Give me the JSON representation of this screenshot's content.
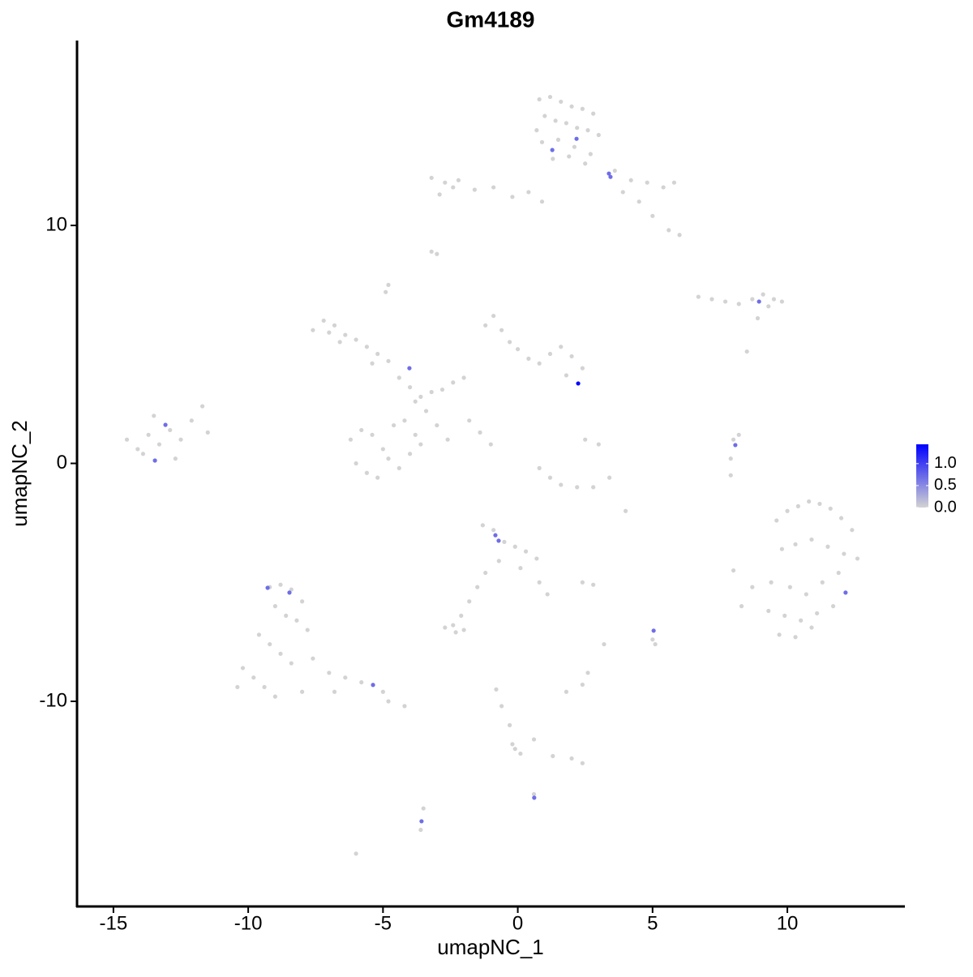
{
  "chart_data": {
    "type": "scatter",
    "title": "Gm4189",
    "x_label": "umapNC_1",
    "y_label": "umapNC_2",
    "xlim": [
      -16.35,
      14.33
    ],
    "ylim": [
      -18.62,
      17.77
    ],
    "xticks": [
      -15,
      -10,
      -5,
      0,
      5,
      10
    ],
    "yticks": [
      -10,
      0,
      10
    ],
    "low_color": "#d3d3d3",
    "high_color": "#0000ff",
    "color_lim": [
      0,
      1.44
    ],
    "color_ticks": [
      {
        "value": 0,
        "label": "0.0"
      },
      {
        "value": 0.5,
        "label": "0.5"
      },
      {
        "value": 1,
        "label": "1.0"
      }
    ],
    "x": [
      0.8,
      1.2,
      1.6,
      2.0,
      2.4,
      2.8,
      1.0,
      1.4,
      1.8,
      2.2,
      2.6,
      3.0,
      0.9,
      1.5,
      2.1,
      2.7,
      1.3,
      1.9,
      2.5,
      0.7,
      3.6,
      4.2,
      4.8,
      5.4,
      5.8,
      4.5,
      5.0,
      5.6,
      6.0,
      3.9,
      -3.2,
      -2.7,
      -2.2,
      -1.6,
      -0.9,
      -0.2,
      0.4,
      0.9,
      -2.9,
      -2.4,
      -3.2,
      -3.0,
      -4.8,
      -4.9,
      8.5,
      4.0,
      6.7,
      7.2,
      7.7,
      8.2,
      8.7,
      9.1,
      9.5,
      9.8,
      9.3,
      8.9,
      -7.6,
      -7.2,
      -6.8,
      -6.4,
      -6.0,
      -5.6,
      -5.2,
      -4.8,
      -7.0,
      -6.6,
      -5.4,
      -4.4,
      -4.0,
      -3.6,
      -3.2,
      -2.8,
      -2.4,
      -2.0,
      -3.4,
      -3.8,
      -3.0,
      -2.6,
      -6.2,
      -5.8,
      -5.4,
      -5.0,
      -4.6,
      -4.2,
      -3.8,
      -6.0,
      -5.6,
      -5.2,
      -4.8,
      -4.4,
      -4.0,
      -3.6,
      -1.2,
      -0.9,
      -0.6,
      -0.3,
      0.0,
      0.4,
      0.8,
      1.2,
      1.6,
      2.0,
      2.4,
      1.8,
      -1.8,
      -1.4,
      -1.0,
      0.8,
      1.2,
      1.6,
      2.2,
      2.8,
      3.4,
      3.0,
      2.5,
      -14.5,
      -14.1,
      -13.7,
      -13.3,
      -12.9,
      -12.5,
      -12.1,
      -11.7,
      -13.9,
      -13.5,
      -12.7,
      -11.5,
      8.0,
      7.9,
      7.9,
      8.2,
      9.6,
      10.0,
      10.4,
      10.8,
      11.2,
      11.6,
      12.0,
      12.4,
      9.8,
      10.3,
      10.9,
      11.5,
      12.1,
      12.6,
      9.4,
      10.1,
      10.7,
      11.3,
      11.9,
      8.0,
      9.3,
      9.9,
      10.5,
      11.1,
      11.7,
      9.7,
      10.3,
      10.9,
      8.3,
      8.7,
      -1.3,
      -0.9,
      -0.5,
      -0.1,
      0.3,
      0.7,
      -0.7,
      0.1,
      0.8,
      1.1,
      -1.2,
      -1.5,
      -1.8,
      -2.1,
      -2.4,
      -2.7,
      -2.3,
      -2.0,
      -9.2,
      -8.8,
      -8.4,
      -8.0,
      -9.0,
      -8.6,
      -8.2,
      -7.8,
      -9.6,
      -9.2,
      -8.8,
      -8.4,
      -10.2,
      -9.8,
      -9.4,
      -7.6,
      -7.0,
      -6.4,
      -5.8,
      -4.8,
      -4.2,
      -10.4,
      -9.0,
      -8.0,
      -6.8,
      -5.0,
      5.0,
      5.1,
      2.4,
      2.8,
      3.2,
      1.8,
      2.4,
      2.6,
      -0.8,
      -0.6,
      -0.3,
      -0.2,
      0.1,
      0.6,
      1.3,
      2.0,
      2.4,
      -3.5,
      -3.6,
      -6.0,
      -0.1,
      0.6,
      1.28,
      2.18,
      3.38,
      3.44,
      8.95,
      -4.02,
      2.24,
      -13.07,
      -13.46,
      8.07,
      -0.83,
      -0.71,
      -9.28,
      -8.47,
      12.16,
      5.04,
      -5.37,
      0.61,
      -3.57
    ],
    "y": [
      15.3,
      15.4,
      15.2,
      15.0,
      14.9,
      14.7,
      14.6,
      14.4,
      14.3,
      14.1,
      14.0,
      13.8,
      13.5,
      13.6,
      13.3,
      13.0,
      12.8,
      12.9,
      12.6,
      14.0,
      12.3,
      11.9,
      11.8,
      11.6,
      11.8,
      11.0,
      10.4,
      9.8,
      9.6,
      11.4,
      12.0,
      11.8,
      11.9,
      11.5,
      11.6,
      11.2,
      11.4,
      11.0,
      11.3,
      11.6,
      8.9,
      8.8,
      7.5,
      7.2,
      4.7,
      -2.0,
      7.0,
      6.9,
      6.8,
      6.7,
      6.9,
      7.1,
      6.9,
      6.8,
      6.6,
      6.1,
      5.6,
      6.0,
      5.8,
      5.4,
      5.2,
      4.9,
      4.6,
      4.3,
      5.5,
      5.1,
      4.2,
      3.6,
      3.2,
      2.8,
      3.0,
      3.1,
      3.4,
      3.6,
      2.2,
      2.6,
      1.6,
      1.0,
      1.0,
      1.4,
      1.2,
      0.6,
      1.6,
      1.8,
      1.2,
      0.0,
      -0.4,
      -0.6,
      0.2,
      -0.2,
      0.4,
      0.8,
      5.8,
      6.2,
      5.6,
      5.1,
      4.8,
      4.4,
      4.2,
      4.6,
      4.9,
      4.5,
      4.0,
      3.7,
      1.8,
      1.3,
      0.8,
      -0.2,
      -0.6,
      -0.9,
      -1.0,
      -1.0,
      -0.6,
      0.8,
      1.0,
      1.0,
      0.6,
      1.2,
      0.8,
      1.4,
      1.0,
      1.8,
      2.4,
      0.4,
      2.0,
      0.2,
      1.3,
      1.0,
      0.2,
      -0.5,
      1.2,
      -2.4,
      -2.0,
      -1.8,
      -1.6,
      -1.7,
      -1.9,
      -2.3,
      -2.8,
      -3.6,
      -3.4,
      -3.2,
      -3.5,
      -3.8,
      -4.0,
      -5.0,
      -5.2,
      -5.5,
      -5.0,
      -4.6,
      -4.5,
      -6.2,
      -6.4,
      -6.6,
      -6.3,
      -6.0,
      -7.2,
      -7.3,
      -6.9,
      -6.0,
      -5.2,
      -2.6,
      -2.8,
      -3.3,
      -3.5,
      -3.7,
      -4.0,
      -4.1,
      -4.4,
      -5.0,
      -5.5,
      -4.6,
      -5.2,
      -5.8,
      -6.4,
      -6.8,
      -6.9,
      -7.1,
      -7.0,
      -5.2,
      -5.1,
      -5.3,
      -5.8,
      -6.0,
      -6.4,
      -6.6,
      -7.0,
      -7.2,
      -7.6,
      -8.0,
      -8.4,
      -8.6,
      -9.0,
      -9.4,
      -8.2,
      -8.8,
      -9.0,
      -9.2,
      -10.0,
      -10.2,
      -9.4,
      -9.8,
      -9.6,
      -9.6,
      -9.6,
      -7.4,
      -7.6,
      -5.0,
      -5.1,
      -7.6,
      -9.6,
      -9.3,
      -8.8,
      -9.5,
      -10.2,
      -11.0,
      -11.8,
      -12.2,
      -11.6,
      -12.3,
      -12.4,
      -12.6,
      -14.5,
      -15.4,
      -16.4,
      -12.0,
      -13.9,
      13.17,
      13.64,
      12.18,
      12.04,
      6.8,
      4.0,
      3.36,
      1.62,
      0.12,
      0.77,
      -3.02,
      -3.25,
      -5.23,
      -5.43,
      -5.43,
      -7.03,
      -9.31,
      -14.05,
      -15.04
    ],
    "values": [
      0,
      0,
      0,
      0,
      0,
      0,
      0,
      0,
      0,
      0,
      0,
      0,
      0,
      0,
      0,
      0,
      0,
      0,
      0,
      0,
      0,
      0,
      0,
      0,
      0,
      0,
      0,
      0,
      0,
      0,
      0,
      0,
      0,
      0,
      0,
      0,
      0,
      0,
      0,
      0,
      0,
      0,
      0,
      0,
      0,
      0,
      0,
      0,
      0,
      0,
      0,
      0,
      0,
      0,
      0,
      0,
      0,
      0,
      0,
      0,
      0,
      0,
      0,
      0,
      0,
      0,
      0,
      0,
      0,
      0,
      0,
      0,
      0,
      0,
      0,
      0,
      0,
      0,
      0,
      0,
      0,
      0,
      0,
      0,
      0,
      0,
      0,
      0,
      0,
      0,
      0,
      0,
      0,
      0,
      0,
      0,
      0,
      0,
      0,
      0,
      0,
      0,
      0,
      0,
      0,
      0,
      0,
      0,
      0,
      0,
      0,
      0,
      0,
      0,
      0,
      0,
      0,
      0,
      0,
      0,
      0,
      0,
      0,
      0,
      0,
      0,
      0,
      0,
      0,
      0,
      0,
      0,
      0,
      0,
      0,
      0,
      0,
      0,
      0,
      0,
      0,
      0,
      0,
      0,
      0,
      0,
      0,
      0,
      0,
      0,
      0,
      0,
      0,
      0,
      0,
      0,
      0,
      0,
      0,
      0,
      0,
      0,
      0,
      0,
      0,
      0,
      0,
      0,
      0,
      0,
      0,
      0,
      0,
      0,
      0,
      0,
      0,
      0,
      0,
      0,
      0,
      0,
      0,
      0,
      0,
      0,
      0,
      0,
      0,
      0,
      0,
      0,
      0,
      0,
      0,
      0,
      0,
      0,
      0,
      0,
      0,
      0,
      0,
      0,
      0,
      0,
      0,
      0,
      0,
      0,
      0,
      0,
      0,
      0,
      0,
      0,
      0,
      0,
      0,
      0,
      0,
      0,
      0,
      0,
      0,
      0,
      0,
      0.69,
      0.69,
      0.69,
      0.69,
      0.69,
      0.69,
      1.4,
      0.69,
      0.69,
      0.69,
      0.69,
      0.69,
      0.69,
      0.69,
      0.69,
      0.69,
      0.69,
      0.69,
      0.69
    ]
  }
}
